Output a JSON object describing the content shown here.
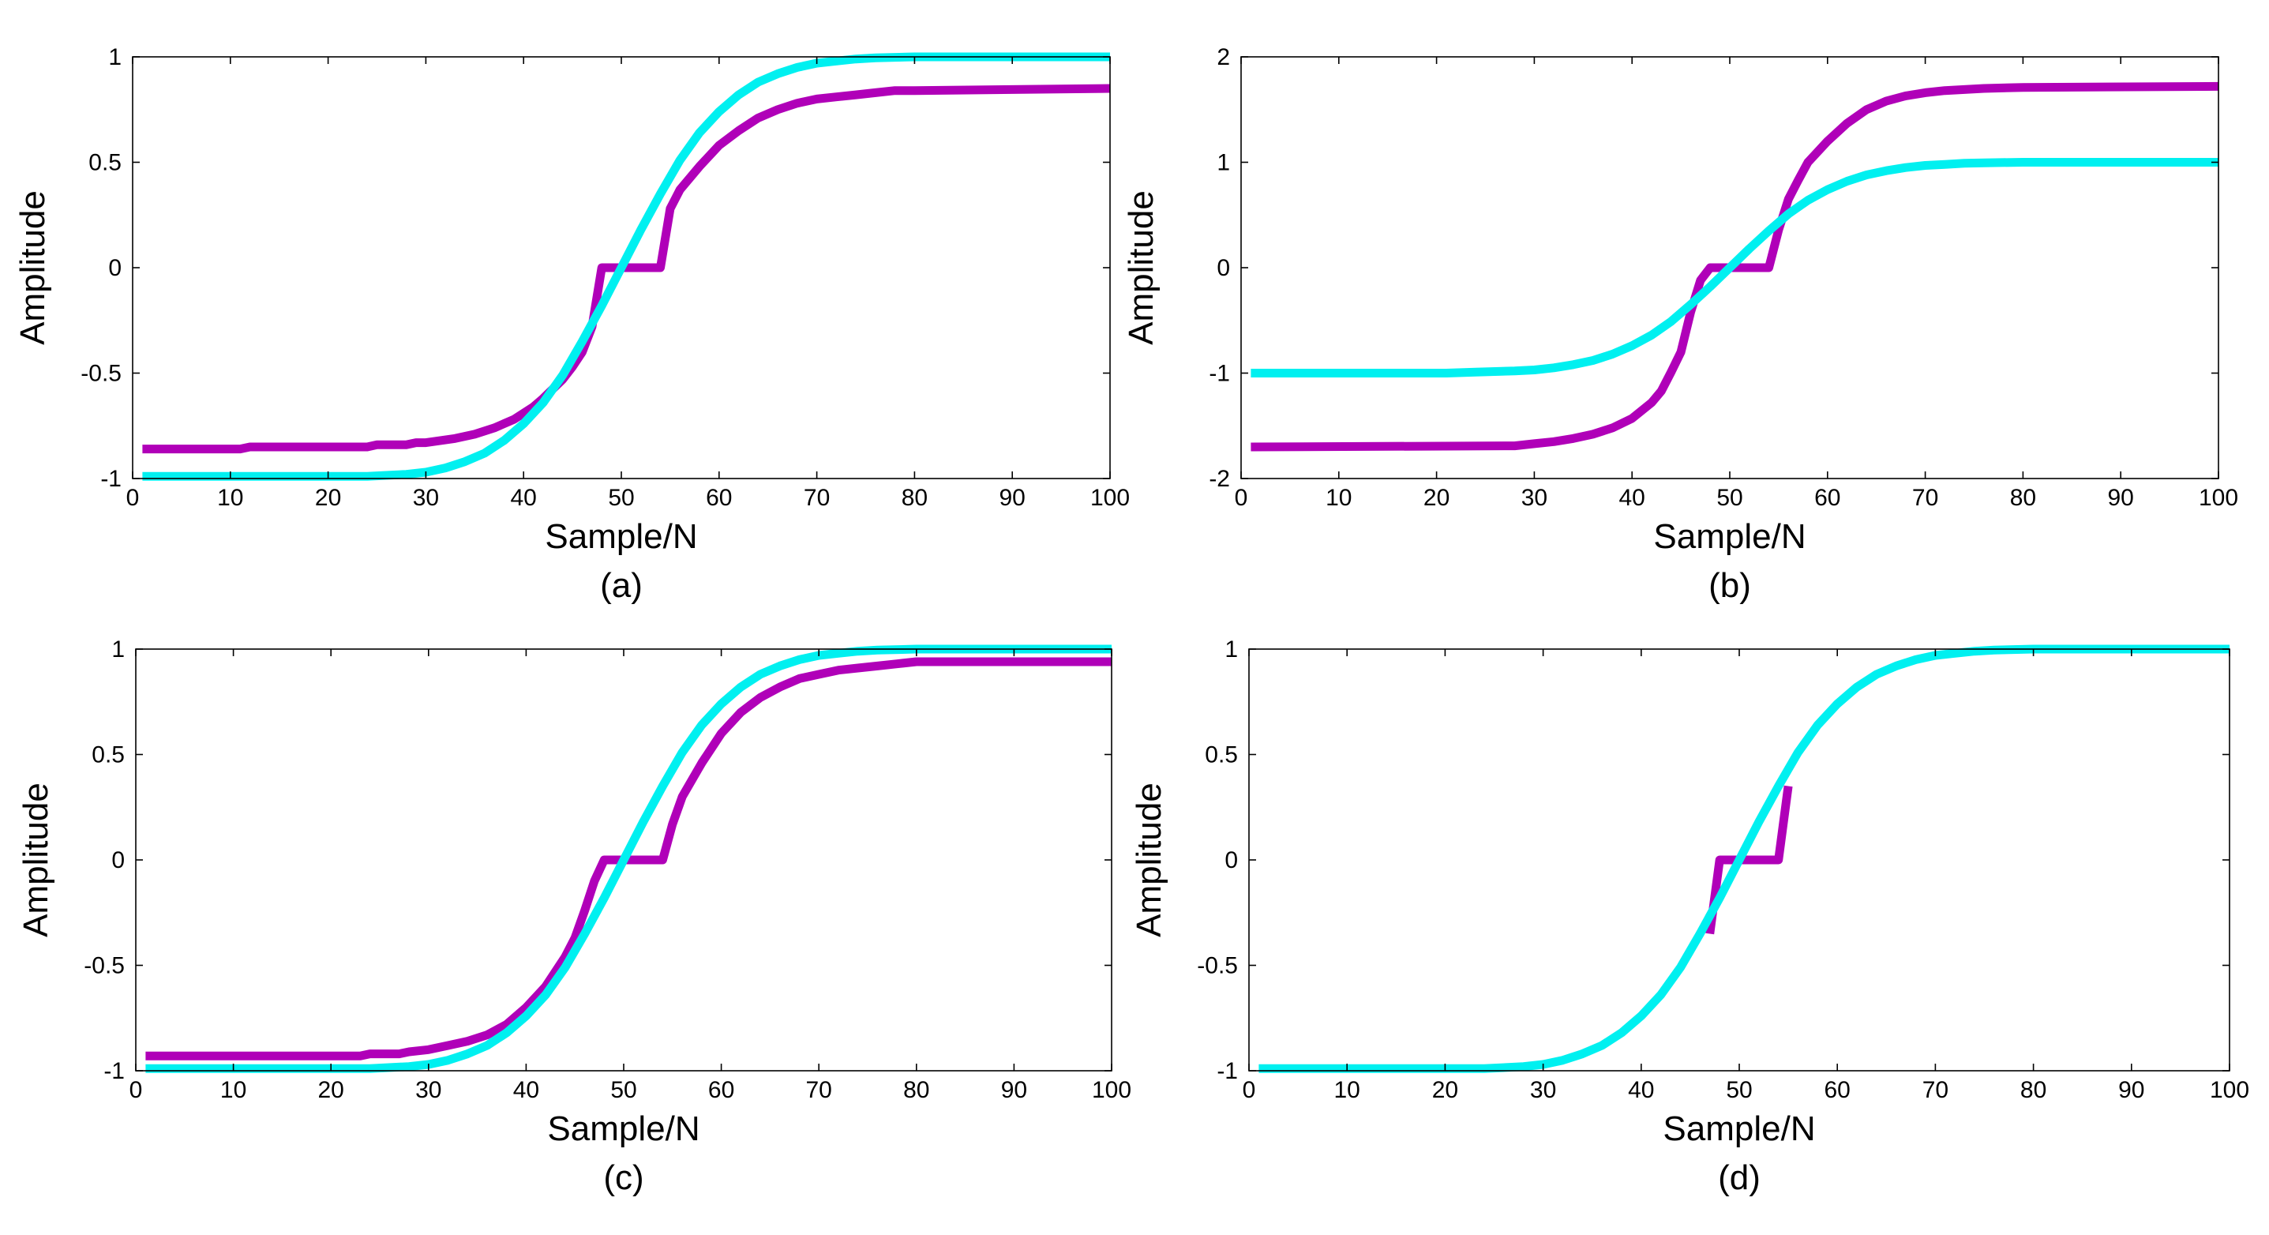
{
  "chart_data": [
    {
      "type": "line",
      "panel_label": "(a)",
      "xlabel": "Sample/N",
      "ylabel": "Amplitude",
      "xlim": [
        0,
        100
      ],
      "ylim": [
        -1,
        1
      ],
      "xticks": [
        0,
        10,
        20,
        30,
        40,
        50,
        60,
        70,
        80,
        90,
        100
      ],
      "xtick_labels": [
        "0",
        "10",
        "20",
        "30",
        "40",
        "50",
        "60",
        "70",
        "80",
        "90",
        "100"
      ],
      "yticks": [
        -1,
        -0.5,
        0,
        0.5,
        1
      ],
      "ytick_labels": [
        "-1",
        "-0.5",
        "0",
        "0.5",
        "1"
      ],
      "series": [
        {
          "name": "purple",
          "color": "#b000b8",
          "x": [
            1,
            11,
            12,
            24,
            25,
            28,
            29,
            30,
            33,
            35,
            37,
            39,
            41,
            42,
            44,
            45,
            46,
            47,
            48,
            54,
            55,
            56,
            58,
            60,
            62,
            64,
            66,
            68,
            70,
            72,
            74,
            76,
            78,
            80,
            100
          ],
          "y": [
            -0.86,
            -0.86,
            -0.85,
            -0.85,
            -0.84,
            -0.84,
            -0.83,
            -0.83,
            -0.81,
            -0.79,
            -0.76,
            -0.72,
            -0.66,
            -0.62,
            -0.53,
            -0.47,
            -0.4,
            -0.28,
            0,
            0,
            0.28,
            0.37,
            0.48,
            0.58,
            0.65,
            0.71,
            0.75,
            0.78,
            0.8,
            0.81,
            0.82,
            0.83,
            0.84,
            0.84,
            0.85
          ]
        },
        {
          "name": "cyan",
          "color": "#00f0f0",
          "x": [
            1,
            24,
            28,
            30,
            32,
            34,
            36,
            38,
            40,
            42,
            44,
            46,
            48,
            50,
            52,
            54,
            56,
            58,
            60,
            62,
            64,
            66,
            68,
            70,
            72,
            74,
            76,
            80,
            100
          ],
          "y": [
            -0.99,
            -0.99,
            -0.98,
            -0.97,
            -0.95,
            -0.92,
            -0.88,
            -0.82,
            -0.74,
            -0.64,
            -0.51,
            -0.35,
            -0.18,
            0,
            0.18,
            0.35,
            0.51,
            0.64,
            0.74,
            0.82,
            0.88,
            0.92,
            0.95,
            0.97,
            0.98,
            0.99,
            0.995,
            1,
            1
          ]
        }
      ]
    },
    {
      "type": "line",
      "panel_label": "(b)",
      "xlabel": "Sample/N",
      "ylabel": "Amplitude",
      "xlim": [
        0,
        100
      ],
      "ylim": [
        -2,
        2
      ],
      "xticks": [
        0,
        10,
        20,
        30,
        40,
        50,
        60,
        70,
        80,
        90,
        100
      ],
      "xtick_labels": [
        "0",
        "10",
        "20",
        "30",
        "40",
        "50",
        "60",
        "70",
        "80",
        "90",
        "100"
      ],
      "yticks": [
        -2,
        -1,
        0,
        1,
        2
      ],
      "ytick_labels": [
        "-2",
        "-1",
        "0",
        "1",
        "2"
      ],
      "series": [
        {
          "name": "purple",
          "color": "#b000b8",
          "x": [
            1,
            28,
            30,
            32,
            34,
            36,
            38,
            40,
            42,
            43,
            44,
            45,
            46,
            47,
            48,
            54,
            55,
            56,
            57,
            58,
            60,
            62,
            64,
            66,
            68,
            70,
            72,
            74,
            76,
            80,
            100
          ],
          "y": [
            -1.7,
            -1.69,
            -1.67,
            -1.65,
            -1.62,
            -1.58,
            -1.52,
            -1.43,
            -1.28,
            -1.17,
            -0.99,
            -0.8,
            -0.42,
            -0.12,
            0,
            0,
            0.36,
            0.65,
            0.83,
            1.0,
            1.2,
            1.37,
            1.5,
            1.58,
            1.63,
            1.66,
            1.68,
            1.69,
            1.7,
            1.71,
            1.72
          ]
        },
        {
          "name": "cyan",
          "color": "#00f0f0",
          "x": [
            1,
            21,
            24,
            28,
            30,
            32,
            34,
            36,
            38,
            40,
            42,
            44,
            46,
            48,
            50,
            52,
            54,
            56,
            58,
            60,
            62,
            64,
            66,
            68,
            70,
            72,
            74,
            76,
            80,
            100
          ],
          "y": [
            -1.0,
            -1.0,
            -0.99,
            -0.98,
            -0.97,
            -0.95,
            -0.92,
            -0.88,
            -0.82,
            -0.74,
            -0.64,
            -0.51,
            -0.35,
            -0.18,
            0,
            0.18,
            0.35,
            0.51,
            0.64,
            0.74,
            0.82,
            0.88,
            0.92,
            0.95,
            0.97,
            0.98,
            0.99,
            0.995,
            1,
            1
          ]
        }
      ]
    },
    {
      "type": "line",
      "panel_label": "(c)",
      "xlabel": "Sample/N",
      "ylabel": "Amplitude",
      "xlim": [
        0,
        100
      ],
      "ylim": [
        -1,
        1
      ],
      "xticks": [
        0,
        10,
        20,
        30,
        40,
        50,
        60,
        70,
        80,
        90,
        100
      ],
      "xtick_labels": [
        "0",
        "10",
        "20",
        "30",
        "40",
        "50",
        "60",
        "70",
        "80",
        "90",
        "100"
      ],
      "yticks": [
        -1,
        -0.5,
        0,
        0.5,
        1
      ],
      "ytick_labels": [
        "-1",
        "-0.5",
        "0",
        "0.5",
        "1"
      ],
      "series": [
        {
          "name": "purple",
          "color": "#b000b8",
          "x": [
            1,
            23,
            24,
            27,
            28,
            30,
            32,
            34,
            36,
            38,
            40,
            42,
            44,
            45,
            46,
            47,
            48,
            54,
            55,
            56,
            58,
            60,
            62,
            64,
            66,
            68,
            70,
            72,
            74,
            76,
            78,
            80,
            100
          ],
          "y": [
            -0.93,
            -0.93,
            -0.92,
            -0.92,
            -0.91,
            -0.9,
            -0.88,
            -0.86,
            -0.83,
            -0.78,
            -0.7,
            -0.6,
            -0.46,
            -0.37,
            -0.24,
            -0.1,
            0,
            0,
            0.17,
            0.3,
            0.46,
            0.6,
            0.7,
            0.77,
            0.82,
            0.86,
            0.88,
            0.9,
            0.91,
            0.92,
            0.93,
            0.94,
            0.94
          ]
        },
        {
          "name": "cyan",
          "color": "#00f0f0",
          "x": [
            1,
            24,
            28,
            30,
            32,
            34,
            36,
            38,
            40,
            42,
            44,
            46,
            48,
            50,
            52,
            54,
            56,
            58,
            60,
            62,
            64,
            66,
            68,
            70,
            72,
            74,
            76,
            80,
            100
          ],
          "y": [
            -0.99,
            -0.99,
            -0.98,
            -0.97,
            -0.95,
            -0.92,
            -0.88,
            -0.82,
            -0.74,
            -0.64,
            -0.51,
            -0.35,
            -0.18,
            0,
            0.18,
            0.35,
            0.51,
            0.64,
            0.74,
            0.82,
            0.88,
            0.92,
            0.95,
            0.97,
            0.98,
            0.99,
            0.995,
            1,
            1
          ]
        }
      ]
    },
    {
      "type": "line",
      "panel_label": "(d)",
      "xlabel": "Sample/N",
      "ylabel": "Amplitude",
      "xlim": [
        0,
        100
      ],
      "ylim": [
        -1,
        1
      ],
      "xticks": [
        0,
        10,
        20,
        30,
        40,
        50,
        60,
        70,
        80,
        90,
        100
      ],
      "xtick_labels": [
        "0",
        "10",
        "20",
        "30",
        "40",
        "50",
        "60",
        "70",
        "80",
        "90",
        "100"
      ],
      "yticks": [
        -1,
        -0.5,
        0,
        0.5,
        1
      ],
      "ytick_labels": [
        "-1",
        "-0.5",
        "0",
        "0.5",
        "1"
      ],
      "series": [
        {
          "name": "purple",
          "color": "#b000b8",
          "x": [
            47,
            48,
            54,
            55
          ],
          "y": [
            -0.35,
            0,
            0,
            0.35
          ]
        },
        {
          "name": "cyan",
          "color": "#00f0f0",
          "x": [
            1,
            24,
            28,
            30,
            32,
            34,
            36,
            38,
            40,
            42,
            44,
            46,
            48,
            50,
            52,
            54,
            56,
            58,
            60,
            62,
            64,
            66,
            68,
            70,
            72,
            74,
            76,
            80,
            100
          ],
          "y": [
            -0.99,
            -0.99,
            -0.98,
            -0.97,
            -0.95,
            -0.92,
            -0.88,
            -0.82,
            -0.74,
            -0.64,
            -0.51,
            -0.35,
            -0.18,
            0,
            0.18,
            0.35,
            0.51,
            0.64,
            0.74,
            0.82,
            0.88,
            0.92,
            0.95,
            0.97,
            0.98,
            0.99,
            0.995,
            1,
            1
          ]
        }
      ]
    }
  ]
}
